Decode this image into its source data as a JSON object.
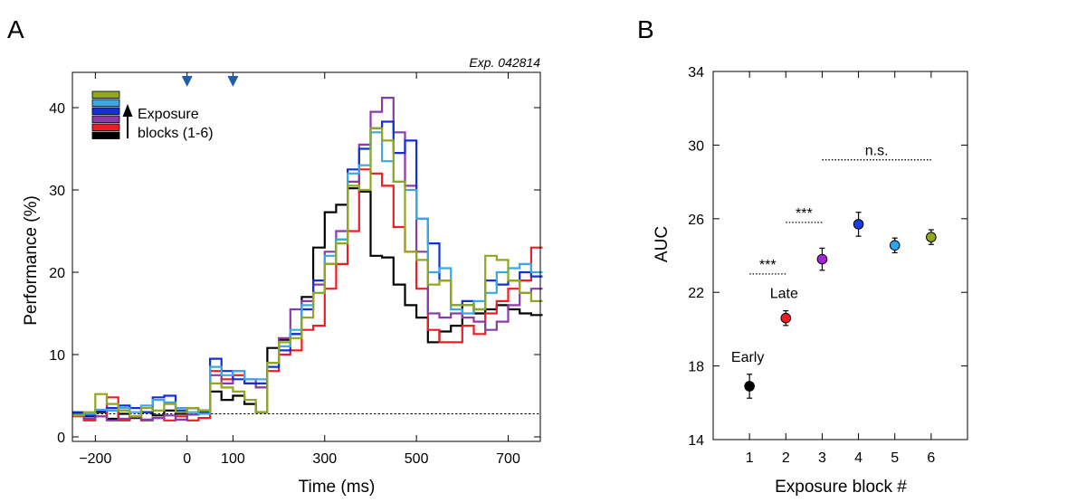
{
  "panels": [
    {
      "letter": "A"
    },
    {
      "letter": "B"
    }
  ],
  "chart_data": [
    {
      "type": "line",
      "style": "step",
      "annotation": "Exp. 042814",
      "xlabel": "Time (ms)",
      "ylabel": "Performance (%)",
      "xlim": [
        -250,
        770
      ],
      "ylim": [
        0,
        45
      ],
      "xticks": [
        -200,
        0,
        100,
        300,
        500,
        700
      ],
      "xtick_labels": [
        "−200",
        "0",
        "100",
        "300",
        "500",
        "700"
      ],
      "yticks": [
        0,
        10,
        20,
        30,
        40
      ],
      "chance_level": 2.8,
      "markers_at": [
        0,
        100
      ],
      "legend": {
        "text_line1": "Exposure",
        "text_line2": "blocks (1-6)",
        "colors": [
          "#8fa81f",
          "#3aa8e6",
          "#1330d8",
          "#8b3aa8",
          "#ee1c24",
          "#000000"
        ]
      },
      "bin_width": 25,
      "x_start": -250,
      "series": [
        {
          "color": "#000000",
          "values": [
            2.8,
            2.5,
            3.0,
            2.2,
            2.8,
            2.3,
            3.0,
            2.6,
            3.2,
            2.8,
            3.5,
            3.2,
            5.5,
            4.5,
            5.0,
            4.0,
            3.0,
            10.8,
            11.8,
            12.5,
            17.0,
            23.0,
            27.3,
            28.2,
            30.2,
            29.8,
            22.0,
            21.8,
            18.5,
            16.0,
            14.5,
            11.5,
            12.8,
            13.5,
            16.0,
            15.0,
            15.5,
            16.0,
            15.5,
            15.0,
            14.8
          ]
        },
        {
          "color": "#ee1c24",
          "values": [
            2.5,
            2.0,
            2.5,
            4.8,
            2.0,
            2.5,
            2.0,
            2.3,
            2.0,
            2.5,
            2.0,
            2.3,
            8.0,
            7.0,
            7.5,
            6.5,
            6.0,
            8.0,
            10.0,
            10.5,
            13.0,
            13.5,
            18.0,
            21.0,
            25.0,
            32.5,
            32.0,
            30.5,
            25.5,
            22.5,
            18.0,
            13.0,
            11.5,
            11.5,
            13.5,
            12.5,
            15.0,
            16.5,
            18.0,
            19.0,
            23.0
          ]
        },
        {
          "color": "#8b3aa8",
          "values": [
            2.6,
            2.2,
            2.5,
            2.0,
            2.2,
            2.4,
            2.1,
            2.3,
            2.6,
            2.1,
            2.7,
            3.0,
            7.5,
            6.5,
            8.0,
            7.0,
            6.0,
            9.0,
            12.0,
            15.5,
            16.5,
            18.5,
            22.5,
            25.0,
            31.0,
            35.5,
            39.5,
            41.2,
            37.0,
            30.5,
            22.5,
            15.0,
            14.5,
            15.0,
            14.5,
            14.0,
            13.0,
            14.0,
            16.0,
            17.5,
            18.0
          ]
        },
        {
          "color": "#1330d8",
          "values": [
            3.0,
            2.6,
            3.2,
            3.5,
            3.8,
            3.5,
            3.0,
            4.8,
            5.0,
            3.2,
            3.5,
            3.0,
            9.5,
            8.0,
            7.0,
            6.5,
            6.5,
            8.5,
            10.5,
            12.5,
            15.5,
            19.0,
            21.0,
            24.0,
            32.5,
            35.0,
            37.5,
            38.3,
            34.5,
            36.0,
            26.5,
            23.5,
            19.0,
            16.0,
            16.5,
            15.5,
            19.0,
            18.5,
            19.0,
            20.0,
            19.5
          ]
        },
        {
          "color": "#3aa8e6",
          "values": [
            2.7,
            2.8,
            3.3,
            3.2,
            3.5,
            3.0,
            3.8,
            4.5,
            4.2,
            3.5,
            3.0,
            2.8,
            8.5,
            7.5,
            8.0,
            7.0,
            7.0,
            9.0,
            11.0,
            13.0,
            16.0,
            17.5,
            22.0,
            24.0,
            32.0,
            33.0,
            37.0,
            33.5,
            31.0,
            30.0,
            26.5,
            20.0,
            20.5,
            15.5,
            15.0,
            16.5,
            17.5,
            20.0,
            20.5,
            21.0,
            20.0
          ]
        },
        {
          "color": "#8fa81f",
          "values": [
            2.6,
            3.0,
            5.2,
            4.0,
            3.2,
            2.5,
            3.5,
            3.2,
            4.0,
            3.0,
            3.5,
            3.2,
            6.5,
            6.0,
            5.5,
            4.5,
            3.0,
            9.0,
            11.5,
            12.0,
            14.5,
            17.5,
            21.0,
            23.5,
            30.5,
            30.0,
            37.5,
            36.0,
            31.0,
            22.5,
            21.5,
            18.5,
            19.0,
            16.0,
            16.0,
            15.5,
            22.0,
            21.5,
            19.0,
            17.5,
            16.5
          ]
        }
      ]
    },
    {
      "type": "scatter",
      "xlabel": "Exposure block #",
      "ylabel": "AUC",
      "xlim": [
        0,
        7
      ],
      "ylim": [
        14,
        34
      ],
      "xticks": [
        1,
        2,
        3,
        4,
        5,
        6
      ],
      "yticks": [
        14,
        18,
        22,
        26,
        30,
        34
      ],
      "points": [
        {
          "x": 1,
          "y": 16.9,
          "err": 0.65,
          "color": "#000000",
          "label": "Early"
        },
        {
          "x": 2,
          "y": 20.6,
          "err": 0.4,
          "color": "#ee1c24",
          "label": "Late"
        },
        {
          "x": 3,
          "y": 23.8,
          "err": 0.6,
          "color": "#a323d6",
          "label": ""
        },
        {
          "x": 4,
          "y": 25.7,
          "err": 0.65,
          "color": "#1d3ce0",
          "label": ""
        },
        {
          "x": 5,
          "y": 24.55,
          "err": 0.4,
          "color": "#2aa5ee",
          "label": ""
        },
        {
          "x": 6,
          "y": 25.0,
          "err": 0.4,
          "color": "#8fa81f",
          "label": ""
        }
      ],
      "significance": [
        {
          "x1": 1,
          "x2": 2,
          "y": 23.0,
          "label": "***"
        },
        {
          "x1": 2,
          "x2": 3,
          "y": 25.8,
          "label": "***"
        },
        {
          "x1": 3,
          "x2": 6,
          "y": 29.2,
          "label": "n.s."
        }
      ]
    }
  ]
}
